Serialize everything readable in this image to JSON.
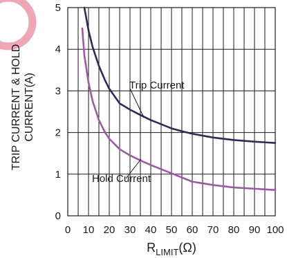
{
  "chart_data": {
    "type": "line",
    "xlim": [
      0,
      100
    ],
    "ylim": [
      0,
      5
    ],
    "x_ticks": [
      "0",
      "10",
      "20",
      "30",
      "40",
      "50",
      "60",
      "70",
      "80",
      "90",
      "100"
    ],
    "y_ticks": [
      "0",
      "1",
      "2",
      "3",
      "4",
      "5"
    ],
    "ylabel_line1": "TRIP CURRENT & HOLD",
    "ylabel_line2": "CURRENT(A)",
    "xlabel_main": "R",
    "xlabel_sub": "LIMIT",
    "xlabel_unit": "(Ω)",
    "grid": true,
    "series": [
      {
        "name": "Trip Current",
        "color": "#2b2a5e",
        "x": [
          8,
          10,
          12,
          15,
          18,
          20,
          25,
          30,
          35,
          40,
          45,
          50,
          55,
          60,
          70,
          80,
          90,
          100
        ],
        "y": [
          5.0,
          4.45,
          4.05,
          3.6,
          3.25,
          3.05,
          2.7,
          2.55,
          2.42,
          2.3,
          2.2,
          2.1,
          2.03,
          1.97,
          1.88,
          1.82,
          1.78,
          1.75
        ]
      },
      {
        "name": "Hold Current",
        "color": "#a056aa",
        "x": [
          7,
          8,
          10,
          12,
          15,
          18,
          20,
          25,
          30,
          35,
          40,
          45,
          50,
          55,
          60,
          70,
          80,
          90,
          100
        ],
        "y": [
          4.5,
          3.85,
          3.2,
          2.75,
          2.3,
          2.0,
          1.85,
          1.6,
          1.45,
          1.33,
          1.22,
          1.12,
          1.02,
          0.92,
          0.82,
          0.74,
          0.68,
          0.65,
          0.62
        ]
      }
    ],
    "annotations": [
      {
        "text": "Trip Current"
      },
      {
        "text": "Hold Current"
      }
    ]
  }
}
